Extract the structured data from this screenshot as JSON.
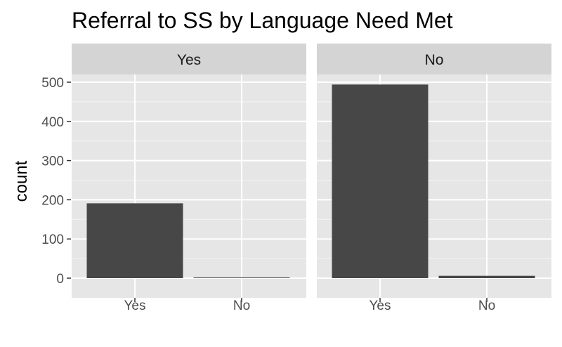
{
  "chart_data": {
    "type": "bar",
    "title": "Referral to SS by Language Need Met",
    "xlabel": "",
    "ylabel": "count",
    "ylim": [
      0,
      500
    ],
    "yticks": [
      0,
      100,
      200,
      300,
      400,
      500
    ],
    "categories": [
      "Yes",
      "No"
    ],
    "grid": true,
    "facets": [
      {
        "label": "Yes",
        "values": [
          191,
          1
        ]
      },
      {
        "label": "No",
        "values": [
          494,
          6
        ]
      }
    ]
  },
  "colors": {
    "bar": "#474747",
    "panel": "#e6e6e6",
    "strip": "#d4d4d4",
    "grid": "#ffffff"
  }
}
